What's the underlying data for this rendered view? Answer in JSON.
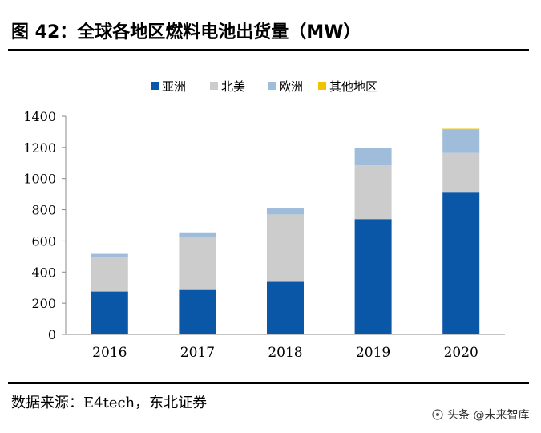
{
  "title": "图  42：全球各地区燃料电池出货量（MW）",
  "source": "数据来源：E4tech，东北证券",
  "watermark": "头条 @未来智库",
  "colors": {
    "asia": "#0a57a8",
    "north_america": "#cccccc",
    "europe": "#9fbcdb",
    "other": "#f2c200",
    "axis": "#888888"
  },
  "chart_data": {
    "type": "bar",
    "stacked": true,
    "title": "全球各地区燃料电池出货量（MW）",
    "xlabel": "",
    "ylabel": "",
    "ylim": [
      0,
      1400
    ],
    "yticks": [
      0,
      200,
      400,
      600,
      800,
      1000,
      1200,
      1400
    ],
    "categories": [
      "2016",
      "2017",
      "2018",
      "2019",
      "2020"
    ],
    "legend_position": "top",
    "series": [
      {
        "name": "亚洲",
        "color": "#0a57a8",
        "values": [
          275,
          285,
          337,
          740,
          910
        ]
      },
      {
        "name": "北美",
        "color": "#cccccc",
        "values": [
          220,
          338,
          433,
          345,
          255
        ]
      },
      {
        "name": "欧洲",
        "color": "#9fbcdb",
        "values": [
          22,
          32,
          38,
          110,
          148
        ]
      },
      {
        "name": "其他地区",
        "color": "#f2c200",
        "values": [
          0,
          0,
          0,
          3,
          7
        ]
      }
    ]
  }
}
